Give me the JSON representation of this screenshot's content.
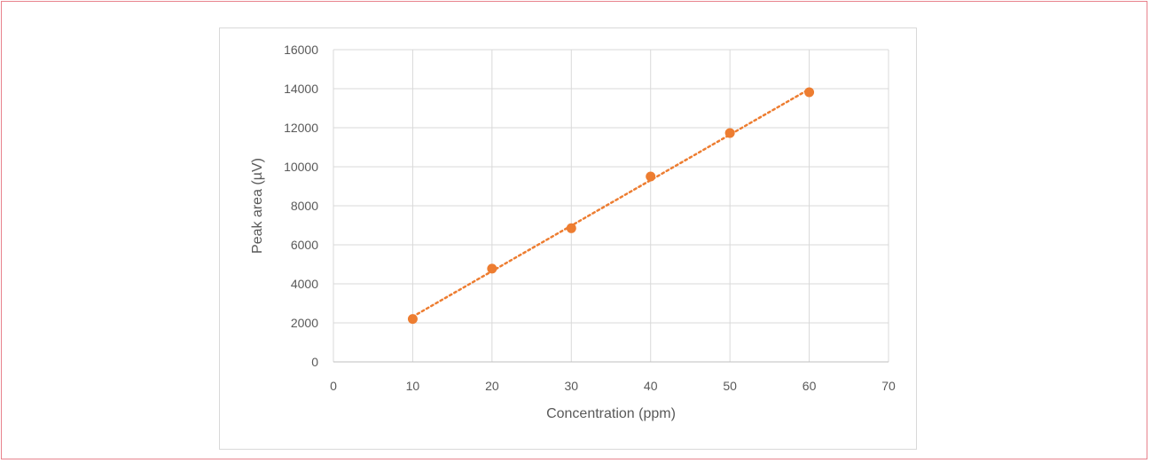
{
  "chart_data": {
    "type": "scatter",
    "title": "",
    "xlabel": "Concentration (ppm)",
    "ylabel": "Peak area (µV)",
    "xlim": [
      0,
      70
    ],
    "ylim": [
      0,
      16000
    ],
    "x_ticks": [
      0,
      10,
      20,
      30,
      40,
      50,
      60,
      70
    ],
    "y_ticks": [
      0,
      2000,
      4000,
      6000,
      8000,
      10000,
      12000,
      14000,
      16000
    ],
    "grid": true,
    "legend": "none",
    "series": [
      {
        "x": [
          10,
          20,
          30,
          40,
          50,
          60
        ],
        "y": [
          2200,
          4780,
          6850,
          9500,
          11730,
          13820
        ],
        "color": "#ed7d31",
        "trendline": "linear dotted"
      }
    ]
  }
}
